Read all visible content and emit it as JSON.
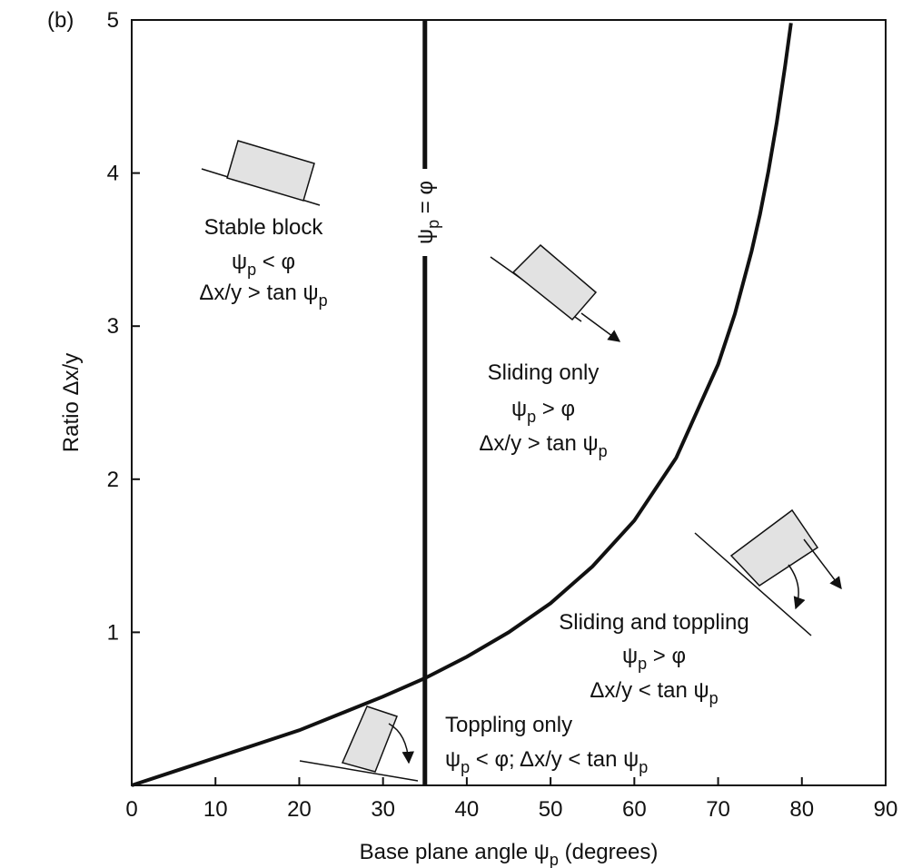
{
  "chart_data": {
    "type": "line",
    "panel_label": "(b)",
    "x_label": [
      "Base plane angle ψ",
      {
        "sub": "p"
      },
      " (degrees)"
    ],
    "y_label": "Ratio Δx/y",
    "xlim": [
      0,
      90
    ],
    "xticks": [
      0,
      10,
      20,
      30,
      40,
      50,
      60,
      70,
      80,
      90
    ],
    "ylim": [
      0,
      5
    ],
    "yticks": [
      1,
      2,
      3,
      4,
      5
    ],
    "x": [
      0,
      5,
      10,
      15,
      20,
      25,
      30,
      35,
      40,
      45,
      50,
      55,
      60,
      65,
      70,
      72,
      74,
      75,
      76,
      77,
      78,
      78.7
    ],
    "series": [
      {
        "color": "#111111",
        "values": [
          0,
          0.09,
          0.18,
          0.27,
          0.36,
          0.47,
          0.58,
          0.7,
          0.84,
          1.0,
          1.19,
          1.43,
          1.73,
          2.14,
          2.75,
          3.08,
          3.49,
          3.73,
          4.01,
          4.33,
          4.7,
          4.98
        ]
      }
    ],
    "vline": {
      "x": 35,
      "label": [
        "ψ",
        {
          "sub": "p"
        },
        " = φ"
      ]
    },
    "annotations": [
      {
        "lines": [
          [
            "Stable block"
          ],
          [
            "ψ",
            {
              "sub": "p"
            },
            " < φ"
          ],
          [
            "Δx/y > tan ψ",
            {
              "sub": "p"
            }
          ]
        ]
      },
      {
        "lines": [
          [
            "Sliding only"
          ],
          [
            "ψ",
            {
              "sub": "p"
            },
            " > φ"
          ],
          [
            "Δx/y > tan ψ",
            {
              "sub": "p"
            }
          ]
        ]
      },
      {
        "lines": [
          [
            "Sliding and toppling"
          ],
          [
            "ψ",
            {
              "sub": "p"
            },
            " > φ"
          ],
          [
            "Δx/y < tan ψ",
            {
              "sub": "p"
            }
          ]
        ]
      },
      {
        "lines": [
          [
            "Toppling only"
          ],
          [
            "ψ",
            {
              "sub": "p"
            },
            " < φ; Δx/y < tan ψ",
            {
              "sub": "p"
            }
          ]
        ]
      }
    ]
  }
}
